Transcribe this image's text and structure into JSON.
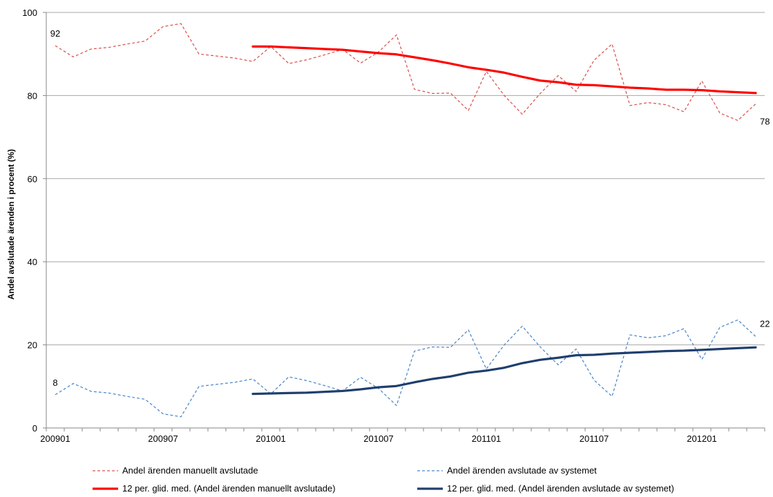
{
  "chart_data": {
    "type": "line",
    "title": "",
    "xlabel": "",
    "ylabel": "Andel avslutade ärenden i procent (%)",
    "ylim": [
      0,
      100
    ],
    "yticks": [
      0,
      20,
      40,
      60,
      80,
      100
    ],
    "grid": true,
    "legend_position": "bottom",
    "x": [
      "200901",
      "200902",
      "200903",
      "200904",
      "200905",
      "200906",
      "200907",
      "200908",
      "200909",
      "200910",
      "200911",
      "200912",
      "201001",
      "201002",
      "201003",
      "201004",
      "201005",
      "201006",
      "201007",
      "201008",
      "201009",
      "201010",
      "201011",
      "201012",
      "201101",
      "201102",
      "201103",
      "201104",
      "201105",
      "201106",
      "201107",
      "201108",
      "201109",
      "201110",
      "201111",
      "201112",
      "201201",
      "201202",
      "201203",
      "201204"
    ],
    "xtick_labels": [
      "200901",
      "200907",
      "201001",
      "201007",
      "201101",
      "201107",
      "201201"
    ],
    "series": [
      {
        "name": "Andel ärenden manuellt avslutade",
        "color": "#d9534f",
        "style": "dashed",
        "values": [
          92,
          89.3,
          91.2,
          91.6,
          92.4,
          93.1,
          96.6,
          97.3,
          90,
          89.5,
          89,
          88.2,
          91.8,
          87.7,
          88.6,
          89.8,
          91.1,
          87.8,
          90.5,
          94.6,
          81.5,
          80.5,
          80.6,
          76.4,
          85.8,
          80,
          75.5,
          80.5,
          84.8,
          81,
          88.5,
          92.4,
          77.6,
          78.3,
          77.8,
          76.1,
          83.5,
          75.8,
          74,
          78
        ]
      },
      {
        "name": "Andel ärenden avslutade av systemet",
        "color": "#4a86c8",
        "style": "dashed",
        "values": [
          8,
          10.7,
          8.8,
          8.4,
          7.6,
          6.9,
          3.4,
          2.7,
          10,
          10.5,
          11,
          11.8,
          8.2,
          12.3,
          11.4,
          10.2,
          8.9,
          12.2,
          9.5,
          5.4,
          18.5,
          19.5,
          19.4,
          23.6,
          14.2,
          20,
          24.5,
          19.5,
          15.2,
          19,
          11.5,
          7.6,
          22.4,
          21.7,
          22.2,
          23.9,
          16.5,
          24.2,
          26,
          22
        ]
      },
      {
        "name": "12 per. glid. med. (Andel ärenden manuellt avslutade)",
        "color": "#ff0000",
        "style": "solid",
        "values": [
          null,
          null,
          null,
          null,
          null,
          null,
          null,
          null,
          null,
          null,
          null,
          91.8,
          91.8,
          91.6,
          91.4,
          91.2,
          91.0,
          90.6,
          90.2,
          89.9,
          89.2,
          88.5,
          87.7,
          86.8,
          86.2,
          85.5,
          84.5,
          83.6,
          83.2,
          82.6,
          82.5,
          82.2,
          81.9,
          81.7,
          81.4,
          81.4,
          81.3,
          81.0,
          80.8,
          80.6
        ]
      },
      {
        "name": "12 per. glid. med. (Andel ärenden avslutade av systemet)",
        "color": "#1f3f6e",
        "style": "solid",
        "values": [
          null,
          null,
          null,
          null,
          null,
          null,
          null,
          null,
          null,
          null,
          null,
          8.2,
          8.3,
          8.4,
          8.5,
          8.7,
          8.9,
          9.3,
          9.8,
          10.1,
          11.0,
          11.8,
          12.4,
          13.3,
          13.8,
          14.5,
          15.6,
          16.4,
          16.9,
          17.5,
          17.6,
          17.9,
          18.1,
          18.3,
          18.5,
          18.6,
          18.8,
          19.0,
          19.2,
          19.4
        ]
      }
    ],
    "annotations": [
      {
        "text": "92",
        "series": 0,
        "index": 0
      },
      {
        "text": "8",
        "series": 1,
        "index": 0
      },
      {
        "text": "78",
        "series": 0,
        "index": 39
      },
      {
        "text": "22",
        "series": 1,
        "index": 39
      }
    ]
  }
}
